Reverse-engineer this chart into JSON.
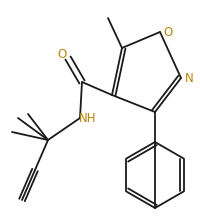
{
  "bg_color": "#ffffff",
  "line_color": "#1a1a1a",
  "o_color": "#b8860b",
  "n_color": "#b8860b",
  "figsize": [
    2.01,
    2.21
  ],
  "dpi": 100,
  "xlim": [
    0,
    201
  ],
  "ylim": [
    0,
    221
  ]
}
